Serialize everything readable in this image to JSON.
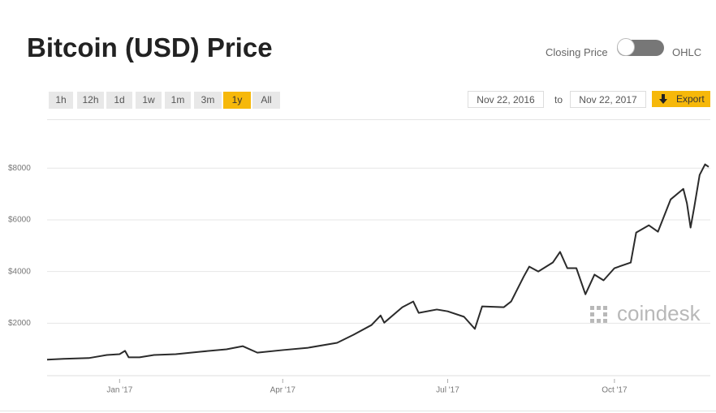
{
  "header": {
    "title": "Bitcoin (USD) Price",
    "toggle_left": "Closing Price",
    "toggle_right": "OHLC"
  },
  "range_buttons": [
    "1h",
    "12h",
    "1d",
    "1w",
    "1m",
    "3m",
    "1y",
    "All"
  ],
  "active_range": "1y",
  "date_range": {
    "from": "Nov 22, 2016",
    "separator": "to",
    "to": "Nov 22, 2017"
  },
  "export": "Export",
  "watermark": "coindesk",
  "chart_data": {
    "type": "line",
    "x": [
      "2016-11-22",
      "2016-12-01",
      "2016-12-15",
      "2016-12-25",
      "2017-01-01",
      "2017-01-04",
      "2017-01-06",
      "2017-01-12",
      "2017-01-20",
      "2017-02-01",
      "2017-02-15",
      "2017-03-01",
      "2017-03-10",
      "2017-03-18",
      "2017-04-01",
      "2017-04-15",
      "2017-05-01",
      "2017-05-10",
      "2017-05-20",
      "2017-05-25",
      "2017-05-27",
      "2017-06-06",
      "2017-06-12",
      "2017-06-15",
      "2017-06-25",
      "2017-07-01",
      "2017-07-10",
      "2017-07-16",
      "2017-07-20",
      "2017-08-01",
      "2017-08-05",
      "2017-08-12",
      "2017-08-15",
      "2017-08-20",
      "2017-08-28",
      "2017-09-01",
      "2017-09-05",
      "2017-09-10",
      "2017-09-15",
      "2017-09-20",
      "2017-09-25",
      "2017-10-01",
      "2017-10-10",
      "2017-10-13",
      "2017-10-20",
      "2017-10-25",
      "2017-11-01",
      "2017-11-08",
      "2017-11-10",
      "2017-11-12",
      "2017-11-14",
      "2017-11-17",
      "2017-11-20",
      "2017-11-22"
    ],
    "values": [
      590,
      620,
      650,
      770,
      800,
      930,
      680,
      680,
      770,
      800,
      900,
      990,
      1110,
      860,
      960,
      1050,
      1240,
      1550,
      1930,
      2300,
      2020,
      2620,
      2840,
      2400,
      2530,
      2460,
      2250,
      1780,
      2650,
      2620,
      2840,
      3810,
      4190,
      4000,
      4350,
      4760,
      4130,
      4130,
      3120,
      3880,
      3660,
      4130,
      4350,
      5510,
      5790,
      5540,
      6790,
      7200,
      6640,
      5700,
      6480,
      7740,
      8150,
      8050
    ],
    "color": "#2b2b2b",
    "xlim": [
      "2016-11-22",
      "2017-11-22"
    ],
    "xticks": [
      {
        "value": "2017-01-01",
        "label": "Jan '17"
      },
      {
        "value": "2017-04-01",
        "label": "Apr '17"
      },
      {
        "value": "2017-07-01",
        "label": "Jul '17"
      },
      {
        "value": "2017-10-01",
        "label": "Oct '17"
      }
    ],
    "ylim": [
      0,
      9800
    ],
    "yticks": [
      {
        "value": 2000,
        "label": "$2000"
      },
      {
        "value": 4000,
        "label": "$4000"
      },
      {
        "value": 6000,
        "label": "$6000"
      },
      {
        "value": 8000,
        "label": "$8000"
      }
    ],
    "grid": true
  }
}
